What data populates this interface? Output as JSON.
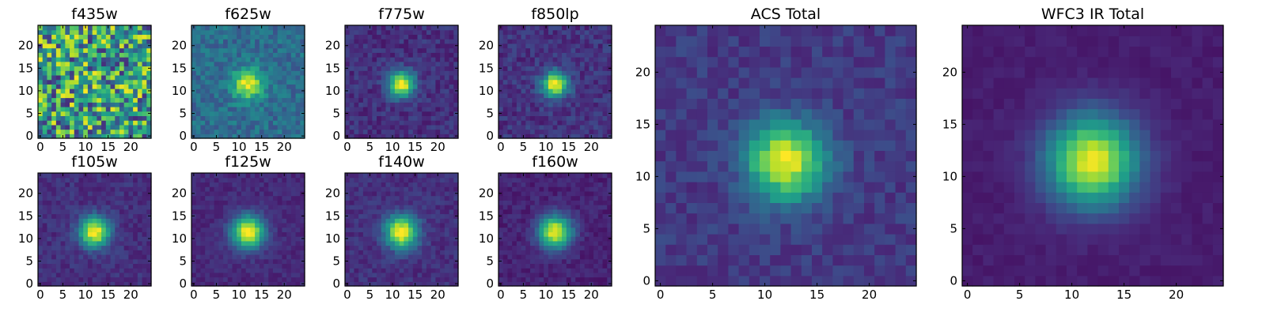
{
  "chart_data": {
    "type": "heatmap",
    "colormap": "viridis",
    "grid_size": 25,
    "panels": [
      {
        "title": "f435w",
        "xticks": [
          0,
          5,
          10,
          15,
          20
        ],
        "yticks": [
          0,
          5,
          10,
          15,
          20
        ],
        "source": {
          "amplitude": 0.05,
          "sigma": 3.0,
          "noise": 0.85,
          "background": 0.55,
          "seed": 11
        }
      },
      {
        "title": "f625w",
        "xticks": [
          0,
          5,
          10,
          15,
          20
        ],
        "yticks": [
          0,
          5,
          10,
          15,
          20
        ],
        "source": {
          "amplitude": 0.62,
          "sigma": 2.3,
          "noise": 0.22,
          "background": 0.36,
          "seed": 23
        }
      },
      {
        "title": "f775w",
        "xticks": [
          0,
          5,
          10,
          15,
          20
        ],
        "yticks": [
          0,
          5,
          10,
          15,
          20
        ],
        "source": {
          "amplitude": 0.86,
          "sigma": 2.0,
          "noise": 0.16,
          "background": 0.14,
          "seed": 37
        }
      },
      {
        "title": "f850lp",
        "xticks": [
          0,
          5,
          10,
          15,
          20
        ],
        "yticks": [
          0,
          5,
          10,
          15,
          20
        ],
        "source": {
          "amplitude": 0.84,
          "sigma": 2.0,
          "noise": 0.17,
          "background": 0.15,
          "seed": 41
        }
      },
      {
        "title": "f105w",
        "xticks": [
          0,
          5,
          10,
          15,
          20
        ],
        "yticks": [
          0,
          5,
          10,
          15,
          20
        ],
        "source": {
          "amplitude": 0.88,
          "sigma": 2.3,
          "noise": 0.13,
          "background": 0.14,
          "seed": 53
        }
      },
      {
        "title": "f125w",
        "xticks": [
          0,
          5,
          10,
          15,
          20
        ],
        "yticks": [
          0,
          5,
          10,
          15,
          20
        ],
        "source": {
          "amplitude": 0.9,
          "sigma": 2.5,
          "noise": 0.1,
          "background": 0.12,
          "seed": 67
        }
      },
      {
        "title": "f140w",
        "xticks": [
          0,
          5,
          10,
          15,
          20
        ],
        "yticks": [
          0,
          5,
          10,
          15,
          20
        ],
        "source": {
          "amplitude": 0.88,
          "sigma": 2.5,
          "noise": 0.13,
          "background": 0.14,
          "seed": 71
        }
      },
      {
        "title": "f160w",
        "xticks": [
          0,
          5,
          10,
          15,
          20
        ],
        "yticks": [
          0,
          5,
          10,
          15,
          20
        ],
        "source": {
          "amplitude": 0.9,
          "sigma": 2.5,
          "noise": 0.11,
          "background": 0.1,
          "seed": 83
        }
      },
      {
        "title": "ACS Total",
        "xticks": [
          0,
          5,
          10,
          15,
          20
        ],
        "yticks": [
          0,
          5,
          10,
          15,
          20
        ],
        "source": {
          "amplitude": 0.82,
          "sigma": 2.6,
          "noise": 0.14,
          "background": 0.17,
          "seed": 97
        }
      },
      {
        "title": "WFC3 IR Total",
        "xticks": [
          0,
          5,
          10,
          15,
          20
        ],
        "yticks": [
          0,
          5,
          10,
          15,
          20
        ],
        "source": {
          "amplitude": 0.9,
          "sigma": 3.0,
          "noise": 0.05,
          "background": 0.08,
          "seed": 101
        }
      }
    ],
    "source_center": [
      12,
      11.5
    ],
    "xlim": [
      -0.5,
      24.5
    ],
    "ylim": [
      -0.5,
      24.5
    ]
  },
  "colors": {
    "viridis_stops": [
      "#440154",
      "#482878",
      "#3e4989",
      "#31688e",
      "#26828e",
      "#1f9e89",
      "#35b779",
      "#6ece58",
      "#b5de2b",
      "#fde725"
    ],
    "axis": "#000000",
    "background": "#ffffff"
  }
}
